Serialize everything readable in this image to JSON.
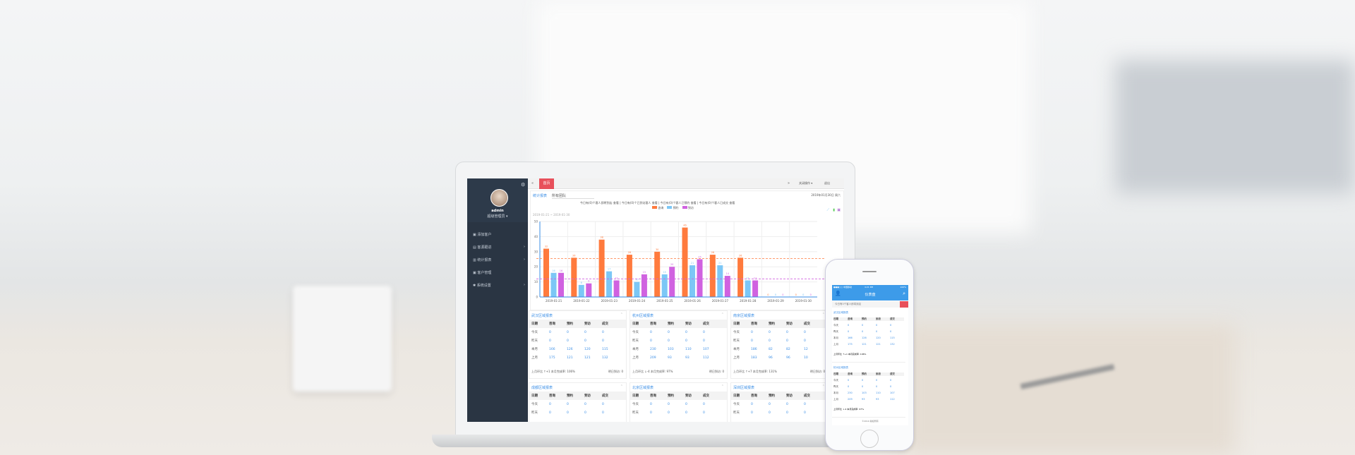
{
  "colors": {
    "sidebar": "#2d3a4a",
    "accent": "#e8505b",
    "orange": "#ff7a3d",
    "blue": "#7cc7f6",
    "purple": "#d062e0",
    "link": "#3a8ee6"
  },
  "sidebar": {
    "user": "admin",
    "role": "超级管理员 ▾",
    "items": [
      {
        "label": "添加客户",
        "icon": "user-icon"
      },
      {
        "label": "客源跟进",
        "icon": "list-icon"
      },
      {
        "label": "统计报表",
        "icon": "chart-icon"
      },
      {
        "label": "客户管理",
        "icon": "users-icon"
      },
      {
        "label": "系统设置",
        "icon": "settings-icon"
      }
    ]
  },
  "topbar": {
    "tab": "首页",
    "right1": "关闭操作 ▾",
    "right2": "退出"
  },
  "chart_panel": {
    "title": "统计报表",
    "select": "所有团队",
    "date": "2019年01月30日 周六",
    "summary": "今日有(0)个客人即将到店 查看 | 今日有(0)个已到访客人 查看 | 今日有(0)个客人已预约 查看 | 今日有(0)个客人已成交 查看",
    "range": "2019-01-21 ~ 2019-01-30"
  },
  "chart_data": {
    "type": "bar",
    "categories": [
      "2019-01-21",
      "2019-01-22",
      "2019-01-23",
      "2019-01-24",
      "2019-01-25",
      "2019-01-26",
      "2019-01-27",
      "2019-01-28",
      "2019-01-29",
      "2019-01-30"
    ],
    "series": [
      {
        "name": "咨询",
        "values": [
          32,
          26,
          38,
          28,
          30,
          46,
          28,
          26,
          0,
          0
        ]
      },
      {
        "name": "预约",
        "values": [
          16,
          8,
          17,
          10,
          15,
          21,
          21,
          11,
          0,
          0
        ]
      },
      {
        "name": "到访",
        "values": [
          16,
          9,
          11,
          15,
          20,
          25,
          14,
          11,
          0,
          0
        ]
      }
    ],
    "yticks": [
      0,
      10,
      20,
      30,
      40,
      50
    ],
    "ylim": [
      0,
      50
    ],
    "mark_lines": [
      25.4,
      12
    ],
    "grid": true,
    "legend": "top"
  },
  "tables": [
    {
      "title": "武汉区域报表",
      "head": [
        "日期",
        "咨询",
        "预约",
        "到访",
        "成交"
      ],
      "rows": [
        [
          "今天",
          "0",
          "0",
          "0",
          "0"
        ],
        [
          "昨天",
          "0",
          "0",
          "0",
          "0"
        ],
        [
          "本月",
          "166",
          "126",
          "120",
          "115"
        ],
        [
          "上月",
          "175",
          "121",
          "121",
          "132"
        ]
      ],
      "foot": "上月环比 ↑+1  本月完成率: 106%",
      "foot2": "明日到访: 0"
    },
    {
      "title": "杭州区域报表",
      "head": [
        "日期",
        "咨询",
        "预约",
        "到访",
        "成交"
      ],
      "rows": [
        [
          "今天",
          "0",
          "0",
          "0",
          "0"
        ],
        [
          "昨天",
          "0",
          "0",
          "0",
          "0"
        ],
        [
          "本月",
          "230",
          "103",
          "110",
          "107"
        ],
        [
          "上月",
          "209",
          "93",
          "93",
          "112"
        ]
      ],
      "foot": "上月环比 ↓-4  本月完成率: 97%",
      "foot2": "明日到访: 0"
    },
    {
      "title": "南京区域报表",
      "head": [
        "日期",
        "咨询",
        "预约",
        "到访",
        "成交"
      ],
      "rows": [
        [
          "今天",
          "0",
          "0",
          "0",
          "0"
        ],
        [
          "昨天",
          "0",
          "0",
          "0",
          "0"
        ],
        [
          "本月",
          "186",
          "82",
          "82",
          "12"
        ],
        [
          "上月",
          "183",
          "96",
          "96",
          "10"
        ]
      ],
      "foot": "上月环比 ↑+7  本月完成率: 131%",
      "foot2": "明日到访: 0"
    },
    {
      "title": "成都区域报表",
      "head": [
        "日期",
        "咨询",
        "预约",
        "到访",
        "成交"
      ],
      "rows": [
        [
          "今天",
          "0",
          "0",
          "0",
          "0"
        ],
        [
          "昨天",
          "0",
          "0",
          "0",
          "0"
        ]
      ]
    },
    {
      "title": "北京区域报表",
      "head": [
        "日期",
        "咨询",
        "预约",
        "到访",
        "成交"
      ],
      "rows": [
        [
          "今天",
          "0",
          "0",
          "0",
          "0"
        ],
        [
          "昨天",
          "0",
          "0",
          "0",
          "0"
        ]
      ]
    },
    {
      "title": "深圳区域报表",
      "head": [
        "日期",
        "咨询",
        "预约",
        "到访",
        "成交"
      ],
      "rows": [
        [
          "今天",
          "0",
          "0",
          "0",
          "0"
        ],
        [
          "昨天",
          "0",
          "0",
          "0",
          "0"
        ]
      ]
    }
  ],
  "phone": {
    "status_left": "●●●○○ 中国移动",
    "time": "4:21 PM",
    "battery": "100%",
    "title": "仪表盘",
    "notice": "今日有0个客人即将到店",
    "footer": "©2019 版权所有"
  }
}
